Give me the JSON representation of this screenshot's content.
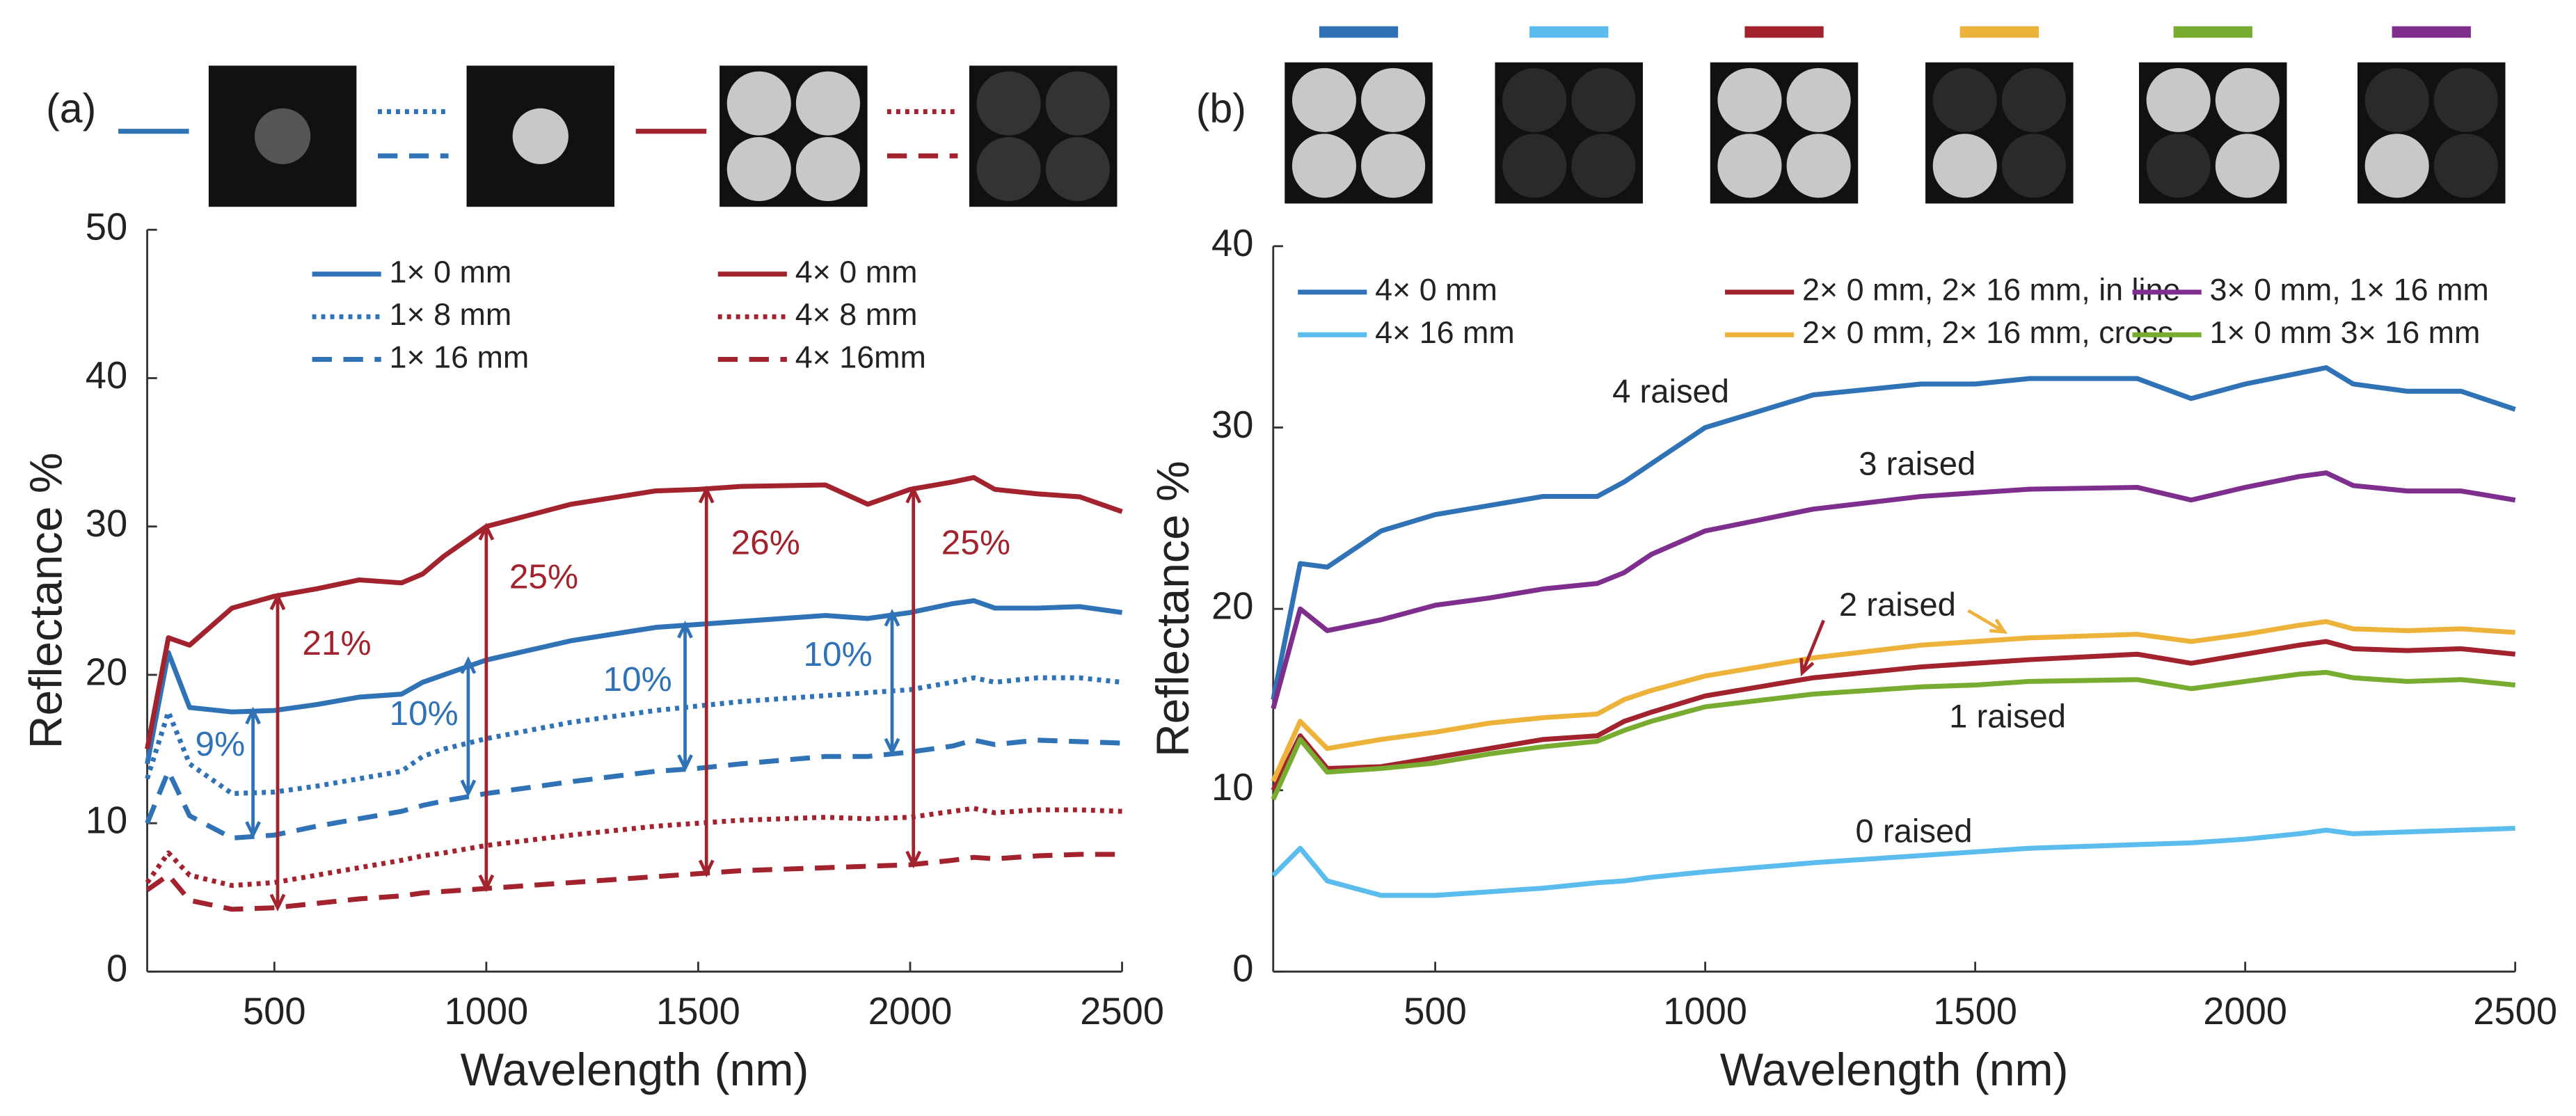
{
  "chart_data": [
    {
      "type": "line",
      "label": "(a)",
      "xlabel": "Wavelength (nm)",
      "ylabel": "Reflectance %",
      "x": [
        200,
        250,
        300,
        400,
        500,
        600,
        700,
        800,
        850,
        900,
        1000,
        1200,
        1400,
        1500,
        1600,
        1800,
        1900,
        2000,
        2100,
        2150,
        2200,
        2300,
        2400,
        2500
      ],
      "xlim": [
        200,
        2500
      ],
      "xticks": [
        500,
        1000,
        1500,
        2000,
        2500
      ],
      "ylim": [
        0,
        50
      ],
      "yticks": [
        0,
        10,
        20,
        30,
        40,
        50
      ],
      "series": [
        {
          "name": "1× 0 mm",
          "color": "#2f72b5",
          "dash": "solid",
          "values": [
            14,
            21.5,
            17.8,
            17.5,
            17.6,
            18,
            18.5,
            18.7,
            19.5,
            20,
            21,
            22.3,
            23.2,
            23.4,
            23.6,
            24,
            23.8,
            24.2,
            24.8,
            25,
            24.5,
            24.5,
            24.6,
            24.2
          ]
        },
        {
          "name": "1× 8 mm",
          "color": "#2f72b5",
          "dash": "dotted",
          "values": [
            13,
            17.5,
            14,
            12,
            12.1,
            12.5,
            13,
            13.5,
            14.5,
            15,
            15.7,
            16.8,
            17.6,
            17.9,
            18.2,
            18.6,
            18.8,
            19,
            19.5,
            19.8,
            19.5,
            19.8,
            19.8,
            19.5
          ]
        },
        {
          "name": "1× 16 mm",
          "color": "#2f72b5",
          "dash": "dashed",
          "values": [
            10,
            13.5,
            10.5,
            9,
            9.2,
            9.8,
            10.3,
            10.8,
            11.2,
            11.5,
            12,
            12.8,
            13.5,
            13.7,
            14,
            14.5,
            14.5,
            14.8,
            15.2,
            15.6,
            15.3,
            15.6,
            15.5,
            15.4
          ]
        },
        {
          "name": "4× 0 mm",
          "color": "#a2232e",
          "dash": "solid",
          "values": [
            15,
            22.5,
            22,
            24.5,
            25.3,
            25.8,
            26.4,
            26.2,
            26.8,
            28,
            30,
            31.5,
            32.4,
            32.5,
            32.7,
            32.8,
            31.5,
            32.5,
            33,
            33.3,
            32.5,
            32.2,
            32,
            31
          ]
        },
        {
          "name": "4× 8 mm",
          "color": "#a2232e",
          "dash": "dotted",
          "values": [
            6,
            8,
            6.5,
            5.8,
            6,
            6.5,
            7,
            7.5,
            7.8,
            8,
            8.5,
            9.2,
            9.8,
            10,
            10.2,
            10.4,
            10.3,
            10.4,
            10.8,
            11,
            10.7,
            10.9,
            10.9,
            10.8
          ]
        },
        {
          "name": "4× 16mm",
          "color": "#a2232e",
          "dash": "dashed",
          "values": [
            5.5,
            6.5,
            4.8,
            4.2,
            4.3,
            4.6,
            4.9,
            5.1,
            5.3,
            5.4,
            5.6,
            6,
            6.4,
            6.6,
            6.8,
            7,
            7.1,
            7.2,
            7.5,
            7.7,
            7.6,
            7.8,
            7.9,
            7.9
          ]
        }
      ],
      "annotations": [
        "9%",
        "10%",
        "10%",
        "10%",
        "21%",
        "25%",
        "26%",
        "25%"
      ]
    },
    {
      "type": "line",
      "label": "(b)",
      "xlabel": "Wavelength (nm)",
      "ylabel": "Reflectance %",
      "x": [
        200,
        250,
        300,
        400,
        500,
        600,
        700,
        800,
        850,
        900,
        1000,
        1200,
        1400,
        1500,
        1600,
        1800,
        1900,
        2000,
        2100,
        2150,
        2200,
        2300,
        2400,
        2500
      ],
      "xlim": [
        200,
        2500
      ],
      "xticks": [
        500,
        1000,
        1500,
        2000,
        2500
      ],
      "ylim": [
        0,
        40
      ],
      "yticks": [
        0,
        10,
        20,
        30,
        40
      ],
      "series": [
        {
          "name": "4× 0 mm",
          "color": "#2f72b5",
          "dash": "solid",
          "values": [
            15,
            22.5,
            22.3,
            24.3,
            25.2,
            25.7,
            26.2,
            26.2,
            27,
            28,
            30,
            31.8,
            32.4,
            32.4,
            32.7,
            32.7,
            31.6,
            32.4,
            33,
            33.3,
            32.4,
            32,
            32,
            31
          ]
        },
        {
          "name": "4× 16 mm",
          "color": "#5bbcee",
          "dash": "solid",
          "values": [
            5.3,
            6.8,
            5,
            4.2,
            4.2,
            4.4,
            4.6,
            4.9,
            5,
            5.2,
            5.5,
            6,
            6.4,
            6.6,
            6.8,
            7,
            7.1,
            7.3,
            7.6,
            7.8,
            7.6,
            7.7,
            7.8,
            7.9
          ]
        },
        {
          "name": "2× 0 mm, 2× 16 mm, in line",
          "color": "#a2232e",
          "dash": "solid",
          "values": [
            10,
            13,
            11.2,
            11.3,
            11.8,
            12.3,
            12.8,
            13,
            13.8,
            14.3,
            15.2,
            16.2,
            16.8,
            17,
            17.2,
            17.5,
            17,
            17.5,
            18,
            18.2,
            17.8,
            17.7,
            17.8,
            17.5
          ]
        },
        {
          "name": "2× 0 mm, 2× 16 mm, cross",
          "color": "#edb23a",
          "dash": "solid",
          "values": [
            10.5,
            13.8,
            12.3,
            12.8,
            13.2,
            13.7,
            14,
            14.2,
            15,
            15.5,
            16.3,
            17.3,
            18,
            18.2,
            18.4,
            18.6,
            18.2,
            18.6,
            19.1,
            19.3,
            18.9,
            18.8,
            18.9,
            18.7
          ]
        },
        {
          "name": "3× 0 mm, 1× 16 mm",
          "color": "#7e2f8e",
          "dash": "solid",
          "values": [
            14.5,
            20,
            18.8,
            19.4,
            20.2,
            20.6,
            21.1,
            21.4,
            22,
            23,
            24.3,
            25.5,
            26.2,
            26.4,
            26.6,
            26.7,
            26,
            26.7,
            27.3,
            27.5,
            26.8,
            26.5,
            26.5,
            26
          ]
        },
        {
          "name": "1× 0 mm 3× 16 mm",
          "color": "#77ac30",
          "dash": "solid",
          "values": [
            9.5,
            12.8,
            11,
            11.2,
            11.5,
            12,
            12.4,
            12.7,
            13.3,
            13.8,
            14.6,
            15.3,
            15.7,
            15.8,
            16,
            16.1,
            15.6,
            16,
            16.4,
            16.5,
            16.2,
            16,
            16.1,
            15.8
          ]
        }
      ],
      "annotations": [
        "4 raised",
        "3 raised",
        "2 raised",
        "1 raised",
        "0 raised"
      ]
    }
  ]
}
